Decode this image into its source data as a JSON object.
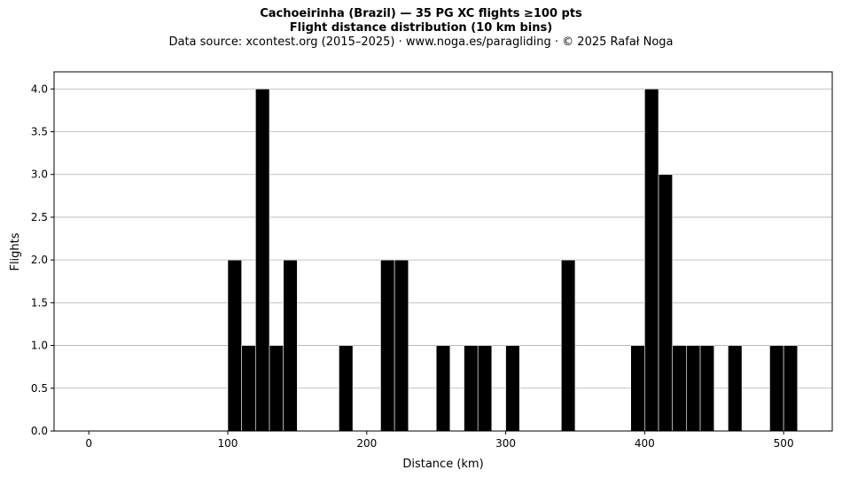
{
  "chart_data": {
    "type": "bar",
    "title": "Cachoeirinha (Brazil)  —  35 PG XC flights ≥100 pts",
    "subtitle": "Flight distance distribution (10 km bins)",
    "source": "Data source: xcontest.org (2015–2025)  ·  www.noga.es/paragliding  ·  © 2025 Rafał Noga",
    "xlabel": "Distance (km)",
    "ylabel": "Flights",
    "bin_width_km": 10,
    "xlim": [
      -25,
      535
    ],
    "ylim": [
      0,
      4.2
    ],
    "x_ticks": [
      0,
      100,
      200,
      300,
      400,
      500
    ],
    "y_ticks": [
      0.0,
      0.5,
      1.0,
      1.5,
      2.0,
      2.5,
      3.0,
      3.5,
      4.0
    ],
    "grid": "y-axis horizontal lines",
    "bar_color": "#000000",
    "bar_edge_color": "#ffffff",
    "bins": [
      {
        "start": 100,
        "count": 2
      },
      {
        "start": 110,
        "count": 1
      },
      {
        "start": 120,
        "count": 4
      },
      {
        "start": 130,
        "count": 1
      },
      {
        "start": 140,
        "count": 2
      },
      {
        "start": 180,
        "count": 1
      },
      {
        "start": 210,
        "count": 2
      },
      {
        "start": 220,
        "count": 2
      },
      {
        "start": 250,
        "count": 1
      },
      {
        "start": 270,
        "count": 1
      },
      {
        "start": 280,
        "count": 1
      },
      {
        "start": 300,
        "count": 1
      },
      {
        "start": 340,
        "count": 2
      },
      {
        "start": 390,
        "count": 1
      },
      {
        "start": 400,
        "count": 4
      },
      {
        "start": 410,
        "count": 3
      },
      {
        "start": 420,
        "count": 1
      },
      {
        "start": 430,
        "count": 1
      },
      {
        "start": 440,
        "count": 1
      },
      {
        "start": 460,
        "count": 1
      },
      {
        "start": 490,
        "count": 1
      },
      {
        "start": 500,
        "count": 1
      }
    ]
  }
}
